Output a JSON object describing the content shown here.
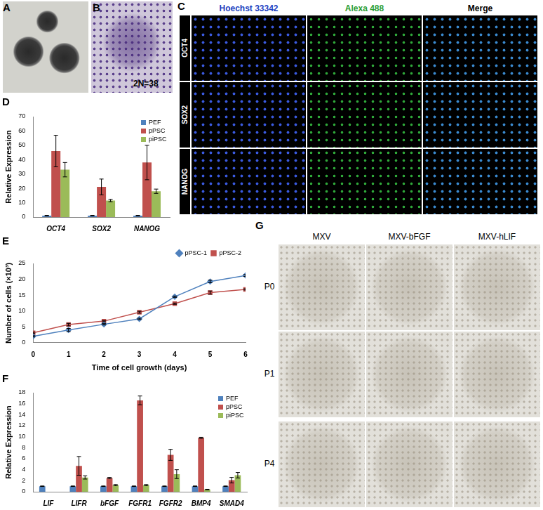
{
  "figure": {
    "panel_letters": [
      "A",
      "B",
      "C",
      "D",
      "E",
      "F",
      "G"
    ],
    "B": {
      "annotation": "2N=38"
    },
    "C": {
      "columns": [
        {
          "text": "Hoechst 33342",
          "color": "#1f3fbf"
        },
        {
          "text": "Alexa 488",
          "color": "#2e9e2e"
        },
        {
          "text": "Merge",
          "color": "#000000"
        }
      ],
      "rows": [
        "OCT4",
        "SOX2",
        "NANOG"
      ]
    },
    "G": {
      "columns": [
        "MXV",
        "MXV-bFGF",
        "MXV-hLIF"
      ],
      "rows": [
        "P0",
        "P1",
        "P4"
      ]
    }
  },
  "chart_data": [
    {
      "type": "bar",
      "categories": [
        "OCT4",
        "SOX2",
        "NANOG"
      ],
      "y_label": "Relative Expression",
      "ylim": [
        0,
        70
      ],
      "yticks": [
        0,
        10,
        20,
        30,
        40,
        50,
        60,
        70
      ],
      "grid": false,
      "legend": "top-right",
      "series": [
        {
          "name": "PEF",
          "color": "#4f81bd",
          "values": [
            1,
            1,
            1
          ],
          "errors": [
            0.2,
            0.2,
            0.2
          ]
        },
        {
          "name": "pPSC",
          "color": "#c0504d",
          "values": [
            46,
            21,
            38
          ],
          "errors": [
            11,
            5.5,
            12
          ]
        },
        {
          "name": "piPSC",
          "color": "#9bbb59",
          "values": [
            33,
            11.5,
            18
          ],
          "errors": [
            5,
            0.8,
            1.5
          ]
        }
      ]
    },
    {
      "type": "line",
      "x": [
        0,
        1,
        2,
        3,
        4,
        5,
        6
      ],
      "x_label": "Time of cell growth (days)",
      "y_label": "Number of cells (×10³)",
      "xlim": [
        0,
        6
      ],
      "xticks": [
        0,
        1,
        2,
        3,
        4,
        5,
        6
      ],
      "ylim": [
        0,
        25
      ],
      "yticks": [
        0,
        5,
        10,
        15,
        20,
        25
      ],
      "grid": false,
      "legend": "top-right",
      "series": [
        {
          "name": "pPSC-1",
          "color": "#4f81bd",
          "marker": "diamond",
          "values": [
            2,
            4,
            5.8,
            7.5,
            14.5,
            19.3,
            21.2
          ],
          "errors": [
            0.2,
            0.5,
            0.2,
            0.2,
            0.2,
            0.4,
            0.3
          ]
        },
        {
          "name": "pPSC-2",
          "color": "#c0504d",
          "marker": "square",
          "values": [
            3.1,
            5.7,
            6.8,
            9.6,
            12.3,
            15.8,
            16.8
          ],
          "errors": [
            0.2,
            0.4,
            0.2,
            0.3,
            0.2,
            0.5,
            0.2
          ]
        }
      ]
    },
    {
      "type": "bar",
      "categories": [
        "LIF",
        "LIFR",
        "bFGF",
        "FGFR1",
        "FGFR2",
        "BMP4",
        "SMAD4"
      ],
      "y_label": "Relative Expression",
      "ylim": [
        0,
        18
      ],
      "yticks": [
        0,
        2,
        4,
        6,
        8,
        10,
        12,
        14,
        16,
        18
      ],
      "grid": false,
      "legend": "top-right",
      "series": [
        {
          "name": "PEF",
          "color": "#4f81bd",
          "values": [
            1,
            1,
            1,
            1,
            1,
            1,
            1
          ],
          "errors": [
            0.05,
            0.05,
            0.05,
            0.05,
            0.05,
            0.05,
            0.05
          ]
        },
        {
          "name": "pPSC",
          "color": "#c0504d",
          "values": [
            0,
            4.7,
            2.5,
            16.6,
            6.7,
            9.8,
            2.1
          ],
          "errors": [
            null,
            1.7,
            0.1,
            0.8,
            1.0,
            0.1,
            0.5
          ]
        },
        {
          "name": "piPSC",
          "color": "#9bbb59",
          "values": [
            0,
            2.6,
            1.2,
            1.2,
            3.2,
            0.4,
            3.0
          ],
          "errors": [
            null,
            0.3,
            0.1,
            0.1,
            0.8,
            0.05,
            0.5
          ]
        }
      ]
    }
  ]
}
